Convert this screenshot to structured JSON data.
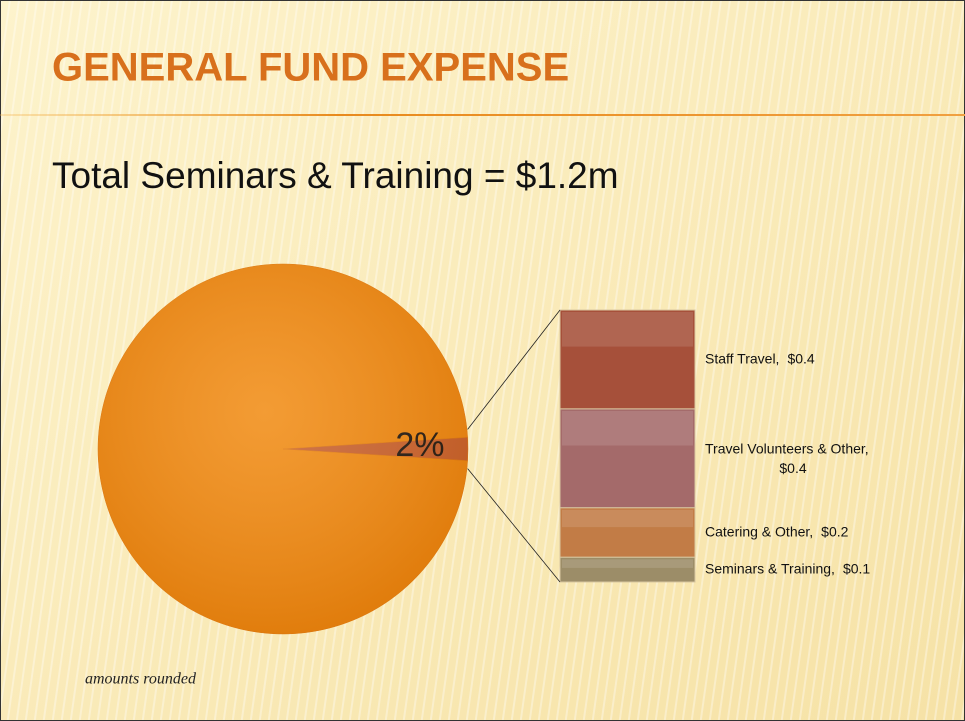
{
  "slide": {
    "title": "GENERAL FUND EXPENSE",
    "subtitle": "Total Seminars & Training = $1.2m",
    "footnote": "amounts rounded"
  },
  "chart_data": [
    {
      "type": "pie",
      "values": [
        98,
        2
      ],
      "value_labels": [
        null,
        "2%"
      ],
      "colors": [
        "#f18a10",
        "#c8602e"
      ]
    },
    {
      "type": "bar",
      "stacked": true,
      "series": [
        {
          "name": "Staff Travel,",
          "color": "#a6503a",
          "values": [
            0.4
          ],
          "value_labels": [
            "$0.4"
          ]
        },
        {
          "name": "Travel Volunteers & Other,",
          "color": "#a46a6a",
          "values": [
            0.4
          ],
          "value_labels": [
            "$0.4"
          ]
        },
        {
          "name": "Catering & Other,",
          "color": "#c27c46",
          "values": [
            0.2
          ],
          "value_labels": [
            "$0.2"
          ]
        },
        {
          "name": "Seminars & Training,",
          "color": "#9c8d68",
          "values": [
            0.1
          ],
          "value_labels": [
            "$0.1"
          ]
        }
      ]
    }
  ]
}
